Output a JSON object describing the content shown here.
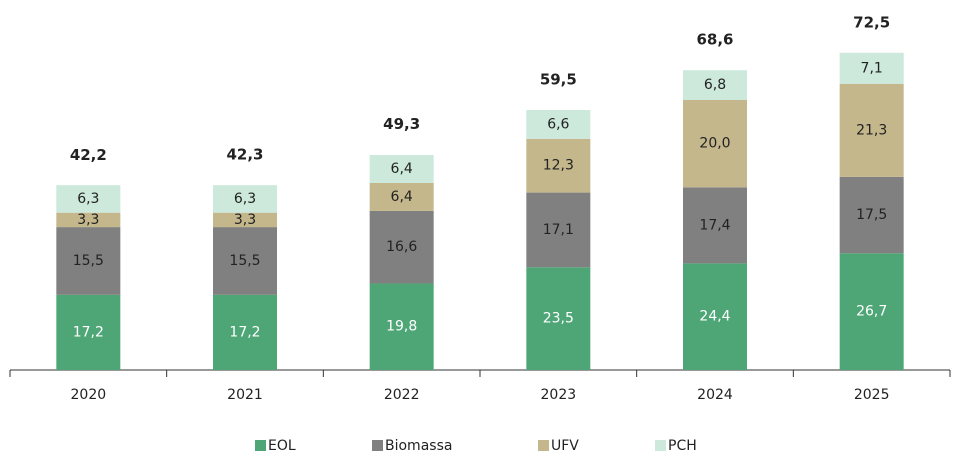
{
  "chart_data": {
    "type": "stacked-bar",
    "categories": [
      "2020",
      "2021",
      "2022",
      "2023",
      "2024",
      "2025"
    ],
    "series": [
      {
        "name": "EOL",
        "color": "#4ea677",
        "values": [
          17.2,
          17.2,
          19.8,
          23.5,
          24.4,
          26.7
        ],
        "value_labels": [
          "17,2",
          "17,2",
          "19,8",
          "23,5",
          "24,4",
          "26,7"
        ]
      },
      {
        "name": "Biomassa",
        "color": "#808080",
        "values": [
          15.5,
          15.5,
          16.6,
          17.1,
          17.4,
          17.5
        ],
        "value_labels": [
          "15,5",
          "15,5",
          "16,6",
          "17,1",
          "17,4",
          "17,5"
        ]
      },
      {
        "name": "UFV",
        "color": "#c4b78c",
        "values": [
          3.3,
          3.3,
          6.4,
          12.3,
          20.0,
          21.3
        ],
        "value_labels": [
          "3,3",
          "3,3",
          "6,4",
          "12,3",
          "20,0",
          "21,3"
        ]
      },
      {
        "name": "PCH",
        "color": "#cce9dc",
        "values": [
          6.3,
          6.3,
          6.4,
          6.6,
          6.8,
          7.1
        ],
        "value_labels": [
          "6,3",
          "6,3",
          "6,4",
          "6,6",
          "6,8",
          "7,1"
        ]
      }
    ],
    "totals": {
      "values": [
        42.2,
        42.3,
        49.3,
        59.5,
        68.6,
        72.5
      ],
      "value_labels": [
        "42,2",
        "42,3",
        "49,3",
        "59,5",
        "68,6",
        "72,5"
      ]
    }
  }
}
